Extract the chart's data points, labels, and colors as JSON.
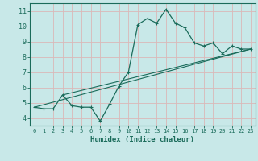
{
  "xlabel": "Humidex (Indice chaleur)",
  "bg_color": "#c8e8e8",
  "grid_color": "#dbb8b8",
  "line_color": "#1a6b5a",
  "axis_bg": "#5a8a80",
  "xlim": [
    -0.5,
    23.5
  ],
  "ylim": [
    3.5,
    11.5
  ],
  "xticks": [
    0,
    1,
    2,
    3,
    4,
    5,
    6,
    7,
    8,
    9,
    10,
    11,
    12,
    13,
    14,
    15,
    16,
    17,
    18,
    19,
    20,
    21,
    22,
    23
  ],
  "yticks": [
    4,
    5,
    6,
    7,
    8,
    9,
    10,
    11
  ],
  "main_x": [
    0,
    1,
    2,
    3,
    4,
    5,
    6,
    7,
    8,
    9,
    10,
    11,
    12,
    13,
    14,
    15,
    16,
    17,
    18,
    19,
    20,
    21,
    22,
    23
  ],
  "main_y": [
    4.7,
    4.6,
    4.6,
    5.5,
    4.8,
    4.7,
    4.7,
    3.8,
    4.9,
    6.1,
    7.0,
    10.1,
    10.5,
    10.2,
    11.1,
    10.2,
    9.9,
    8.9,
    8.7,
    8.9,
    8.2,
    8.7,
    8.5,
    8.5
  ],
  "line1_x": [
    0,
    23
  ],
  "line1_y": [
    4.7,
    8.5
  ],
  "line2_x": [
    3,
    23
  ],
  "line2_y": [
    5.5,
    8.5
  ]
}
